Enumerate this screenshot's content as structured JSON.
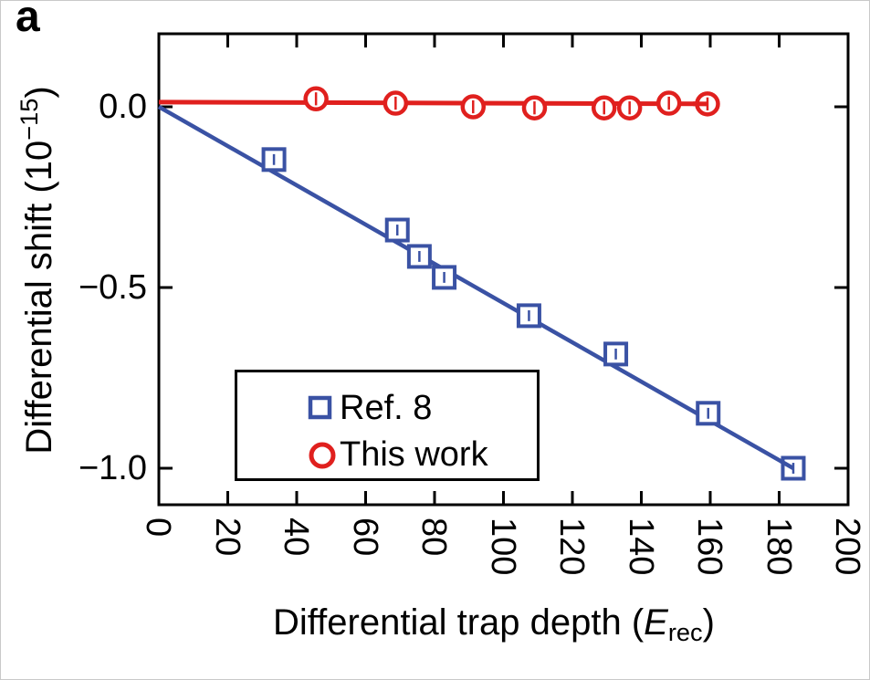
{
  "panel_label": "a",
  "axes": {
    "y_title": {
      "pre": "Differential shift (10",
      "sup": "−15",
      "post": ")"
    },
    "x_title": {
      "pre": "Differential trap depth (",
      "var": "E",
      "sub": "rec",
      "post": ")"
    },
    "x_tick_labels": [
      "0",
      "20",
      "40",
      "60",
      "80",
      "100",
      "120",
      "140",
      "160",
      "180",
      "200"
    ],
    "y_tick_labels": [
      "0.0",
      "−0.5",
      "−1.0"
    ]
  },
  "legend": {
    "items": [
      {
        "label": "Ref. 8",
        "marker": "square",
        "color": "#3A52A4"
      },
      {
        "label": "This work",
        "marker": "circle",
        "color": "#E0201E"
      }
    ]
  },
  "colors": {
    "ref8_blue": "#3A52A4",
    "thiswork_red": "#E0201E",
    "axis_black": "#000000"
  },
  "chart_data": {
    "type": "scatter",
    "title": "",
    "xlabel": "Differential trap depth (E_rec)",
    "ylabel": "Differential shift (10^-15)",
    "xlim": [
      0,
      200
    ],
    "ylim": [
      -1.1,
      0.2
    ],
    "x_tick_values": [
      0,
      20,
      40,
      60,
      80,
      100,
      120,
      140,
      160,
      180,
      200
    ],
    "y_tick_values": [
      0.0,
      -0.5,
      -1.0
    ],
    "grid": false,
    "legend_position": "lower left inside",
    "series": [
      {
        "name": "Ref. 8",
        "marker": "square",
        "color": "#3A52A4",
        "x": [
          33.4,
          69.2,
          75.6,
          82.8,
          107.4,
          132.6,
          159.4,
          184.1
        ],
        "y": [
          -0.146,
          -0.341,
          -0.414,
          -0.472,
          -0.578,
          -0.684,
          -0.848,
          -1.0
        ],
        "yerr": 0.015,
        "fit_line": {
          "x": [
            0,
            184.1
          ],
          "y": [
            0.0,
            -1.0
          ]
        }
      },
      {
        "name": "This work",
        "marker": "circle",
        "color": "#E0201E",
        "x": [
          45.6,
          68.7,
          91.2,
          109.0,
          129.2,
          136.6,
          148.0,
          159.2
        ],
        "y": [
          0.022,
          0.01,
          0.0,
          -0.003,
          -0.003,
          -0.003,
          0.01,
          0.008
        ],
        "yerr": 0.018,
        "fit_line": {
          "x": [
            0,
            159.2
          ],
          "y": [
            0.013,
            0.008
          ]
        }
      }
    ]
  }
}
